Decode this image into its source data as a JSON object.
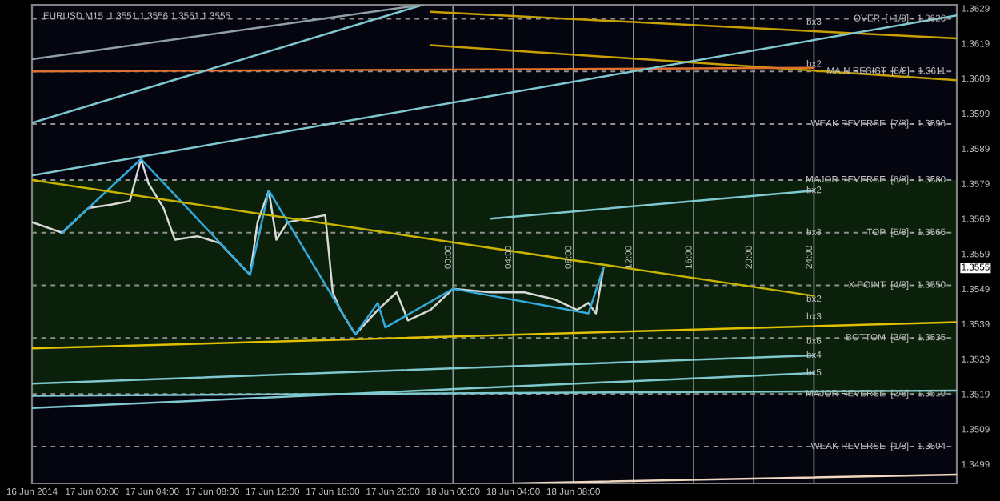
{
  "chart_data": {
    "type": "line",
    "title": "EURUSD,M15  1.3551 1.3556 1.3551 1.3555",
    "xlim": [
      "2014-06-16T20:00",
      "2014-06-19T09:30"
    ],
    "xticks": [
      {
        "value": "2014-06-16T20:00",
        "label": "16 Jun 2014"
      },
      {
        "value": "2014-06-17T00:00",
        "label": "17 Jun 00:00"
      },
      {
        "value": "2014-06-17T04:00",
        "label": "17 Jun 04:00"
      },
      {
        "value": "2014-06-17T08:00",
        "label": "17 Jun 08:00"
      },
      {
        "value": "2014-06-17T12:00",
        "label": "17 Jun 12:00"
      },
      {
        "value": "2014-06-17T16:00",
        "label": "17 Jun 16:00"
      },
      {
        "value": "2014-06-17T20:00",
        "label": "17 Jun 20:00"
      },
      {
        "value": "2014-06-18T00:00",
        "label": "18 Jun 00:00"
      },
      {
        "value": "2014-06-18T04:00",
        "label": "18 Jun 04:00"
      },
      {
        "value": "2014-06-18T08:00",
        "label": "18 Jun 08:00"
      }
    ],
    "ylim": [
      1.34935,
      1.363
    ],
    "yticks": [
      1.3499,
      1.3509,
      1.3519,
      1.3529,
      1.3539,
      1.3549,
      1.3559,
      1.3569,
      1.3579,
      1.3589,
      1.3599,
      1.3609,
      1.3619,
      1.3629
    ],
    "marker": "none",
    "line_style": "solid",
    "grid": false,
    "legend": false,
    "series": [
      {
        "color": "#d8d8d8",
        "x": [
          "2014-06-16T20:00",
          "2014-06-16T22:00",
          "2014-06-16T23:45",
          "2014-06-17T01:15",
          "2014-06-17T02:30",
          "2014-06-17T03:15",
          "2014-06-17T03:45",
          "2014-06-17T04:45",
          "2014-06-17T05:30",
          "2014-06-17T07:00",
          "2014-06-17T08:30",
          "2014-06-17T10:30",
          "2014-06-17T11:00",
          "2014-06-17T11:45",
          "2014-06-17T12:15",
          "2014-06-17T13:00",
          "2014-06-17T14:15",
          "2014-06-17T15:30",
          "2014-06-17T16:00",
          "2014-06-17T16:30",
          "2014-06-17T17:30",
          "2014-06-17T19:00",
          "2014-06-17T20:15",
          "2014-06-17T21:00",
          "2014-06-17T22:30",
          "2014-06-18T00:00",
          "2014-06-18T02:30",
          "2014-06-18T04:45",
          "2014-06-18T06:45",
          "2014-06-18T08:15",
          "2014-06-18T09:00",
          "2014-06-18T09:30",
          "2014-06-18T10:00"
        ],
        "values": [
          1.3568,
          1.3565,
          1.3572,
          1.3573,
          1.3574,
          1.3586,
          1.3579,
          1.3572,
          1.3563,
          1.3564,
          1.3562,
          1.3553,
          1.3568,
          1.3577,
          1.3563,
          1.3568,
          1.3569,
          1.357,
          1.3548,
          1.3543,
          1.3536,
          1.3543,
          1.3548,
          1.354,
          1.3543,
          1.3549,
          1.3548,
          1.3548,
          1.3546,
          1.3543,
          1.3545,
          1.3542,
          1.3555
        ]
      },
      {
        "color": "#33aadd",
        "x": [
          "2014-06-16T22:00",
          "2014-06-17T03:15",
          "2014-06-17T10:30",
          "2014-06-17T11:45",
          "2014-06-17T17:30",
          "2014-06-17T19:00",
          "2014-06-17T19:30",
          "2014-06-18T00:00",
          "2014-06-18T09:00",
          "2014-06-18T10:00"
        ],
        "values": [
          1.3565,
          1.3586,
          1.3553,
          1.3577,
          1.3536,
          1.3545,
          1.3538,
          1.3549,
          1.3542,
          1.3555
        ]
      },
      {
        "color": "#c8b400",
        "x": [
          "2014-06-16T20:00",
          "2014-06-19T00:00"
        ],
        "values": [
          1.358,
          1.3547
        ]
      },
      {
        "color": "#e0c000",
        "x": [
          "2014-06-16T20:00",
          "2014-06-19T09:30"
        ],
        "values": [
          1.3532,
          1.35395
        ]
      },
      {
        "color": "#c8a000",
        "x": [
          "2014-06-17T22:30",
          "2014-06-19T09:30"
        ],
        "values": [
          1.3628,
          1.36204
        ]
      },
      {
        "color": "#c8a000",
        "x": [
          "2014-06-17T22:30",
          "2014-06-19T09:30"
        ],
        "values": [
          1.36185,
          1.36085
        ]
      },
      {
        "color": "#e07030",
        "x": [
          "2014-06-16T20:00",
          "2014-06-19T00:00"
        ],
        "values": [
          1.3611,
          1.3612
        ]
      },
      {
        "color": "#7fc8d0",
        "x": [
          "2014-06-16T20:00",
          "2014-06-17T22:00"
        ],
        "values": [
          1.35963,
          1.363
        ]
      },
      {
        "color": "#7fc8d0",
        "x": [
          "2014-06-16T20:00",
          "2014-06-19T09:30"
        ],
        "values": [
          1.35813,
          1.3627
        ]
      },
      {
        "color": "#8fa0a8",
        "x": [
          "2014-06-16T20:00",
          "2014-06-17T22:00"
        ],
        "values": [
          1.36145,
          1.363
        ]
      },
      {
        "color": "#7fc8d0",
        "x": [
          "2014-06-16T20:00",
          "2014-06-19T09:30"
        ],
        "values": [
          1.35185,
          1.352
        ]
      },
      {
        "color": "#f0d8c0",
        "x": [
          "2014-06-18T04:00",
          "2014-06-19T09:30"
        ],
        "values": [
          1.34935,
          1.3496
        ]
      },
      {
        "color": "#7fc8d0",
        "x": [
          "2014-06-18T02:30",
          "2014-06-19T00:00"
        ],
        "values": [
          1.3569,
          1.3577
        ]
      },
      {
        "color": "#7fc8d0",
        "x": [
          "2014-06-16T20:00",
          "2014-06-19T00:00"
        ],
        "values": [
          1.3522,
          1.353
        ]
      },
      {
        "color": "#7fc8d0",
        "x": [
          "2014-06-16T20:00",
          "2014-06-19T00:00"
        ],
        "values": [
          1.3515,
          1.3525
        ]
      }
    ],
    "bands": [
      {
        "axis": "y",
        "from": 1.3519,
        "to": 1.358,
        "color": "#0a200a"
      }
    ],
    "ref_lines": [
      {
        "axis": "y",
        "value": 1.3626,
        "label": "OVER  [+1/8] - 1.3626",
        "color": "#909090",
        "line_style": "dashed"
      },
      {
        "axis": "y",
        "value": 1.3611,
        "label": "MAIN RESIST  [8/8] - 1.3611",
        "color": "#909090",
        "line_style": "dashed"
      },
      {
        "axis": "y",
        "value": 1.3596,
        "label": "WEAK REVERSE  [7/8] - 1.3596",
        "color": "#909090",
        "line_style": "dashed"
      },
      {
        "axis": "y",
        "value": 1.358,
        "label": "MAJOR REVERSE  [6/8] - 1.3580",
        "color": "#909090",
        "line_style": "dashed"
      },
      {
        "axis": "y",
        "value": 1.3565,
        "label": "TOP  [5/8] - 1.3565",
        "color": "#909090",
        "line_style": "dashed"
      },
      {
        "axis": "y",
        "value": 1.355,
        "label": "X POINT  [4/8] - 1.3550",
        "color": "#909090",
        "line_style": "dashed"
      },
      {
        "axis": "y",
        "value": 1.3535,
        "label": "BOTTOM  [3/8] - 1.3535",
        "color": "#909090",
        "line_style": "dashed"
      },
      {
        "axis": "y",
        "value": 1.3519,
        "label": "MAJOR REVERSE  [2/8] - 1.3519",
        "color": "#909090",
        "line_style": "dashed"
      },
      {
        "axis": "y",
        "value": 1.3504,
        "label": "WEAK REVERSE  [1/8] - 1.3504",
        "color": "#909090",
        "line_style": "dashed"
      },
      {
        "axis": "x",
        "value": "2014-06-18T00:00",
        "label": "00:00",
        "color": "#8a9a9a",
        "line_style": "solid"
      },
      {
        "axis": "x",
        "value": "2014-06-18T04:00",
        "label": "04:00",
        "color": "#8a9a9a",
        "line_style": "solid"
      },
      {
        "axis": "x",
        "value": "2014-06-18T08:00",
        "label": "08:00",
        "color": "#8a9a9a",
        "line_style": "solid"
      },
      {
        "axis": "x",
        "value": "2014-06-18T12:00",
        "label": "12:00",
        "color": "#8a9a9a",
        "line_style": "solid"
      },
      {
        "axis": "x",
        "value": "2014-06-18T16:00",
        "label": "16:00",
        "color": "#8a9a9a",
        "line_style": "solid"
      },
      {
        "axis": "x",
        "value": "2014-06-18T20:00",
        "label": "20:00",
        "color": "#8a9a9a",
        "line_style": "solid"
      },
      {
        "axis": "x",
        "value": "2014-06-19T00:00",
        "label": "24:00",
        "color": "#8a9a9a",
        "line_style": "solid"
      }
    ],
    "annotations": [
      {
        "text": "bx3",
        "x": "2014-06-19T00:00",
        "y": 1.3625
      },
      {
        "text": "bx2",
        "x": "2014-06-19T00:00",
        "y": 1.3613
      },
      {
        "text": "bx2",
        "x": "2014-06-19T00:00",
        "y": 1.3577
      },
      {
        "text": "bx3",
        "x": "2014-06-19T00:00",
        "y": 1.3565
      },
      {
        "text": "bx2",
        "x": "2014-06-19T00:00",
        "y": 1.3546
      },
      {
        "text": "bx3",
        "x": "2014-06-19T00:00",
        "y": 1.3541
      },
      {
        "text": "bx6",
        "x": "2014-06-19T00:00",
        "y": 1.3534
      },
      {
        "text": "bx4",
        "x": "2014-06-19T00:00",
        "y": 1.353
      },
      {
        "text": "bx5",
        "x": "2014-06-19T00:00",
        "y": 1.3525
      },
      "1.3555"
    ]
  }
}
